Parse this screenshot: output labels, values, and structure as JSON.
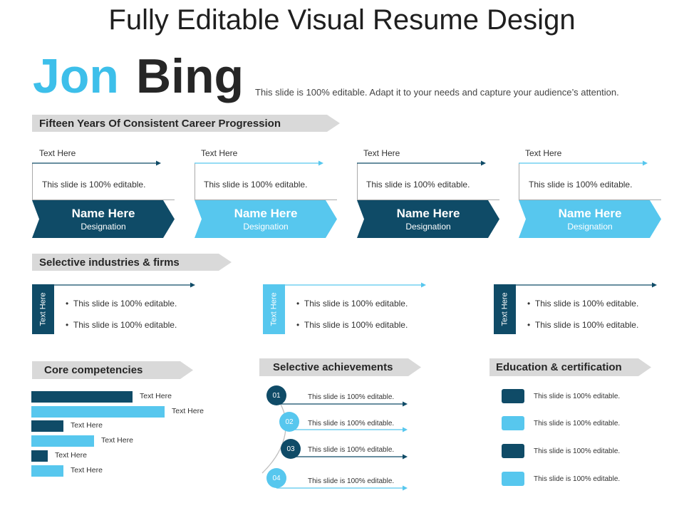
{
  "title": "Fully Editable Visual Resume Design",
  "name": {
    "first": "Jon",
    "last": "Bing"
  },
  "tagline": "This slide is 100% editable. Adapt it to your needs and capture your audience’s attention.",
  "colors": {
    "dark": "#0f4b67",
    "light": "#57c7ee",
    "accent_name": "#3dbfea",
    "banner": "#d9d9d9"
  },
  "career": {
    "heading": "Fifteen Years Of Consistent Career Progression",
    "items": [
      {
        "label": "Text Here",
        "text": "This slide is 100% editable.",
        "name": "Name Here",
        "designation": "Designation",
        "tone": "dark"
      },
      {
        "label": "Text Here",
        "text": "This slide is 100% editable.",
        "name": "Name Here",
        "designation": "Designation",
        "tone": "light"
      },
      {
        "label": "Text Here",
        "text": "This slide is 100% editable.",
        "name": "Name Here",
        "designation": "Designation",
        "tone": "dark"
      },
      {
        "label": "Text Here",
        "text": "This slide is 100% editable.",
        "name": "Name Here",
        "designation": "Designation",
        "tone": "light"
      }
    ]
  },
  "industries": {
    "heading": "Selective industries & firms",
    "items": [
      {
        "tab": "Text Here",
        "bullets": [
          "This slide is 100% editable.",
          "This slide is 100% editable."
        ],
        "tone": "dark"
      },
      {
        "tab": "Text Here",
        "bullets": [
          "This slide is 100% editable.",
          "This slide is 100% editable."
        ],
        "tone": "light"
      },
      {
        "tab": "Text Here",
        "bullets": [
          "This slide is 100% editable.",
          "This slide is 100% editable."
        ],
        "tone": "dark"
      }
    ]
  },
  "competencies": {
    "heading": "Core competencies",
    "items": [
      {
        "label": "Text Here",
        "level": 0.5,
        "tone": "dark"
      },
      {
        "label": "Text Here",
        "level": 0.66,
        "tone": "light"
      },
      {
        "label": "Text Here",
        "level": 0.16,
        "tone": "dark"
      },
      {
        "label": "Text Here",
        "level": 0.31,
        "tone": "light"
      },
      {
        "label": "Text Here",
        "level": 0.08,
        "tone": "dark"
      },
      {
        "label": "Text Here",
        "level": 0.16,
        "tone": "light"
      }
    ]
  },
  "achievements": {
    "heading": "Selective achievements",
    "items": [
      {
        "num": "01",
        "text": "This slide is 100% editable.",
        "tone": "dark"
      },
      {
        "num": "02",
        "text": "This slide is 100% editable.",
        "tone": "light"
      },
      {
        "num": "03",
        "text": "This slide is 100% editable.",
        "tone": "dark"
      },
      {
        "num": "04",
        "text": "This slide is 100% editable.",
        "tone": "light"
      }
    ]
  },
  "education": {
    "heading": "Education & certification",
    "items": [
      {
        "text": "This slide is 100% editable.",
        "tone": "dark"
      },
      {
        "text": "This slide is 100% editable.",
        "tone": "light"
      },
      {
        "text": "This slide is 100% editable.",
        "tone": "dark"
      },
      {
        "text": "This slide is 100% editable.",
        "tone": "light"
      }
    ]
  }
}
